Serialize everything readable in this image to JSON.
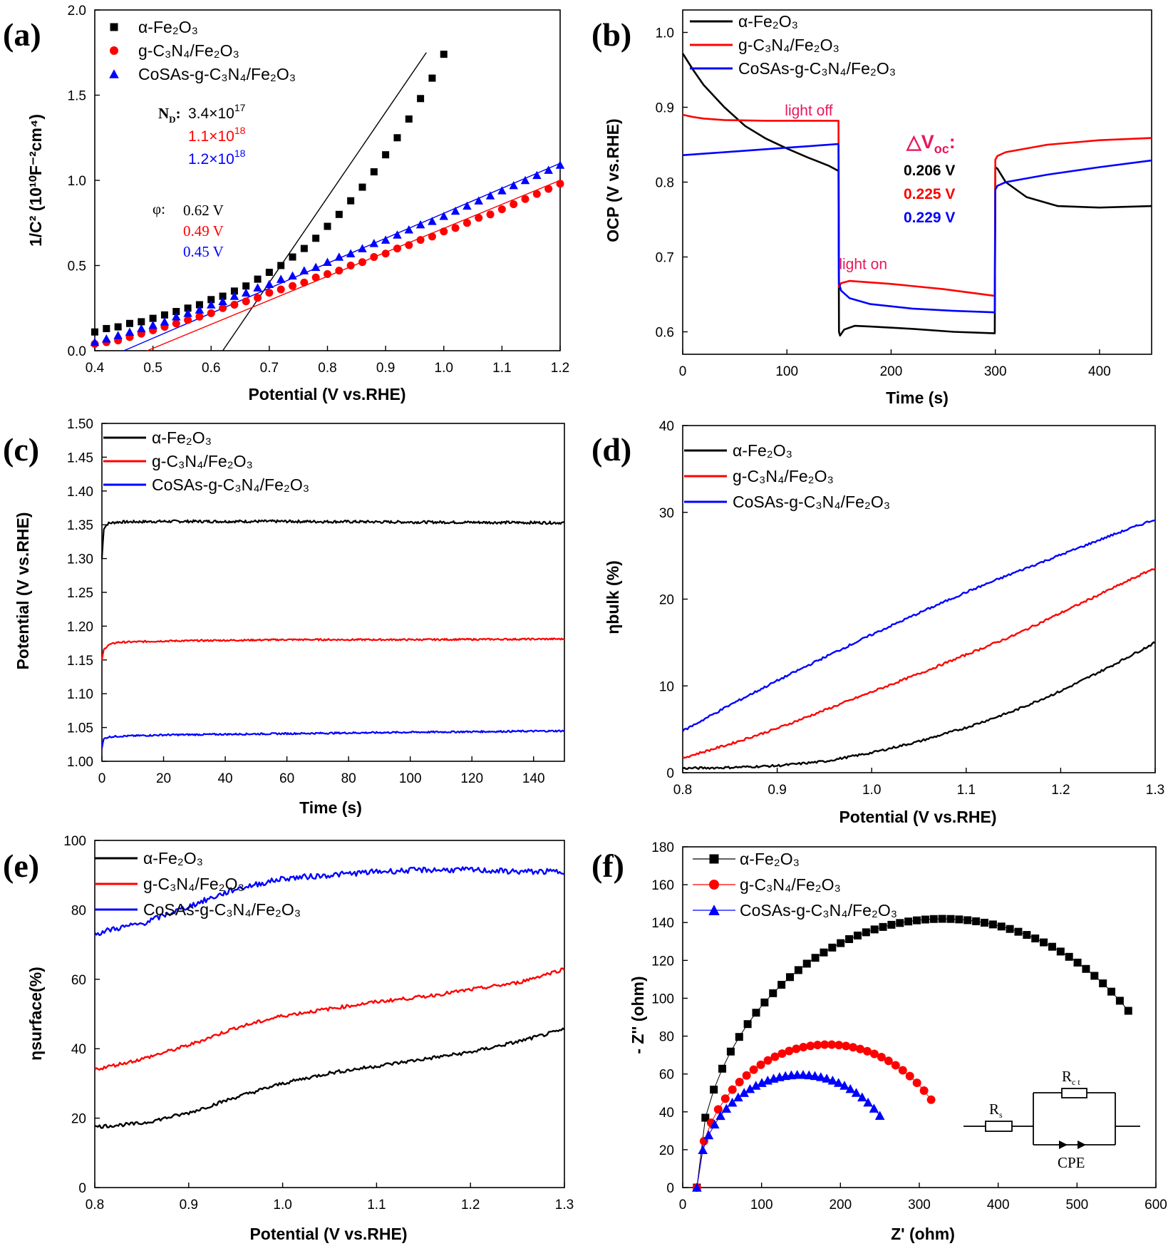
{
  "colors": {
    "black": "#000000",
    "red": "#ff0000",
    "blue": "#0000ff",
    "pink": "#e8185a"
  },
  "chart_data": [
    {
      "id": "a",
      "letter": "(a)",
      "type": "scatter",
      "xlabel": "Potential (V vs.RHE)",
      "ylabel": "1/C² (10¹⁰F⁻²cm⁴)",
      "xlim": [
        0.4,
        1.2
      ],
      "ylim": [
        0,
        2.0
      ],
      "xticks": [
        0.4,
        0.5,
        0.6,
        0.7,
        0.8,
        0.9,
        1.0,
        1.1,
        1.2
      ],
      "yticks": [
        0.0,
        0.5,
        1.0,
        1.5,
        2.0
      ],
      "tick_decimals_x": 1,
      "tick_decimals_y": 1,
      "legend_position": "top-left",
      "series": [
        {
          "name": "α-Fe₂O₃",
          "color": "#000000",
          "marker": "square",
          "x": [
            0.4,
            0.42,
            0.44,
            0.46,
            0.48,
            0.5,
            0.52,
            0.54,
            0.56,
            0.58,
            0.6,
            0.62,
            0.64,
            0.66,
            0.68,
            0.7,
            0.72,
            0.74,
            0.76,
            0.78,
            0.8,
            0.82,
            0.84,
            0.86,
            0.88,
            0.9,
            0.92,
            0.94,
            0.96,
            0.98,
            1.0
          ],
          "y": [
            0.11,
            0.13,
            0.14,
            0.16,
            0.17,
            0.19,
            0.21,
            0.23,
            0.25,
            0.27,
            0.3,
            0.32,
            0.35,
            0.38,
            0.42,
            0.46,
            0.5,
            0.55,
            0.6,
            0.66,
            0.73,
            0.8,
            0.88,
            0.96,
            1.05,
            1.15,
            1.25,
            1.36,
            1.48,
            1.6,
            1.74
          ]
        },
        {
          "name": "g-C₃N₄/Fe₂O₃",
          "color": "#ff0000",
          "marker": "circle",
          "x": [
            0.4,
            0.42,
            0.44,
            0.46,
            0.48,
            0.5,
            0.52,
            0.54,
            0.56,
            0.58,
            0.6,
            0.62,
            0.64,
            0.66,
            0.68,
            0.7,
            0.72,
            0.74,
            0.76,
            0.78,
            0.8,
            0.82,
            0.84,
            0.86,
            0.88,
            0.9,
            0.92,
            0.94,
            0.96,
            0.98,
            1.0,
            1.02,
            1.04,
            1.06,
            1.08,
            1.1,
            1.12,
            1.14,
            1.16,
            1.18,
            1.2
          ],
          "y": [
            0.04,
            0.05,
            0.06,
            0.08,
            0.1,
            0.12,
            0.14,
            0.16,
            0.18,
            0.2,
            0.22,
            0.25,
            0.27,
            0.29,
            0.31,
            0.34,
            0.36,
            0.38,
            0.4,
            0.43,
            0.45,
            0.47,
            0.5,
            0.52,
            0.55,
            0.57,
            0.6,
            0.62,
            0.65,
            0.67,
            0.7,
            0.72,
            0.75,
            0.78,
            0.8,
            0.83,
            0.86,
            0.89,
            0.92,
            0.95,
            0.98
          ]
        },
        {
          "name": "CoSAs-g-C₃N₄/Fe₂O₃",
          "color": "#0000ff",
          "marker": "triangle",
          "x": [
            0.4,
            0.42,
            0.44,
            0.46,
            0.48,
            0.5,
            0.52,
            0.54,
            0.56,
            0.58,
            0.6,
            0.62,
            0.64,
            0.66,
            0.68,
            0.7,
            0.72,
            0.74,
            0.76,
            0.78,
            0.8,
            0.82,
            0.84,
            0.86,
            0.88,
            0.9,
            0.92,
            0.94,
            0.96,
            0.98,
            1.0,
            1.02,
            1.04,
            1.06,
            1.08,
            1.1,
            1.12,
            1.14,
            1.16,
            1.18,
            1.2
          ],
          "y": [
            0.05,
            0.07,
            0.09,
            0.11,
            0.13,
            0.15,
            0.17,
            0.2,
            0.22,
            0.24,
            0.27,
            0.29,
            0.32,
            0.34,
            0.37,
            0.39,
            0.42,
            0.44,
            0.47,
            0.49,
            0.52,
            0.55,
            0.57,
            0.6,
            0.63,
            0.65,
            0.68,
            0.71,
            0.74,
            0.76,
            0.79,
            0.82,
            0.85,
            0.88,
            0.91,
            0.94,
            0.97,
            1.0,
            1.03,
            1.06,
            1.09
          ]
        }
      ],
      "fit_lines": [
        {
          "color": "#000000",
          "x": [
            0.62,
            0.97
          ],
          "y": [
            0.0,
            1.75
          ]
        },
        {
          "color": "#ff0000",
          "x": [
            0.49,
            1.2
          ],
          "y": [
            0.0,
            1.0
          ]
        },
        {
          "color": "#0000ff",
          "x": [
            0.45,
            1.2
          ],
          "y": [
            0.0,
            1.1
          ]
        }
      ]
    },
    {
      "id": "b",
      "letter": "(b)",
      "type": "line",
      "xlabel": "Time (s)",
      "ylabel": "OCP (V vs.RHE)",
      "xlim": [
        0,
        450
      ],
      "ylim": [
        0.57,
        1.03
      ],
      "xticks": [
        0,
        100,
        200,
        300,
        400
      ],
      "yticks": [
        0.6,
        0.7,
        0.8,
        0.9,
        1.0
      ],
      "tick_decimals_x": 0,
      "tick_decimals_y": 1,
      "legend_position": "top-left",
      "series": [
        {
          "name": "α-Fe₂O₃",
          "color": "#000000",
          "x": [
            0,
            10,
            20,
            40,
            60,
            80,
            100,
            120,
            140,
            149.5,
            150,
            151,
            155,
            165,
            180,
            220,
            260,
            299.5,
            300,
            302,
            310,
            330,
            360,
            400,
            450
          ],
          "y": [
            0.972,
            0.95,
            0.93,
            0.9,
            0.875,
            0.858,
            0.845,
            0.833,
            0.822,
            0.815,
            0.6,
            0.595,
            0.603,
            0.608,
            0.607,
            0.604,
            0.6,
            0.598,
            0.82,
            0.818,
            0.8,
            0.78,
            0.768,
            0.766,
            0.768
          ]
        },
        {
          "name": "g-C₃N₄/Fe₂O₃",
          "color": "#ff0000",
          "x": [
            0,
            10,
            20,
            40,
            80,
            120,
            149.5,
            150,
            152,
            160,
            200,
            250,
            299.5,
            300,
            302,
            310,
            350,
            400,
            450
          ],
          "y": [
            0.89,
            0.887,
            0.885,
            0.883,
            0.882,
            0.882,
            0.882,
            0.66,
            0.665,
            0.668,
            0.664,
            0.657,
            0.648,
            0.83,
            0.835,
            0.84,
            0.85,
            0.856,
            0.859
          ]
        },
        {
          "name": "CoSAs-g-C₃N₄/Fe₂O₃",
          "color": "#0000ff",
          "x": [
            0,
            30,
            60,
            100,
            130,
            149.5,
            150,
            152,
            160,
            180,
            220,
            260,
            299.5,
            300,
            302,
            310,
            350,
            400,
            450
          ],
          "y": [
            0.836,
            0.839,
            0.842,
            0.846,
            0.849,
            0.851,
            0.665,
            0.655,
            0.645,
            0.637,
            0.631,
            0.628,
            0.626,
            0.79,
            0.795,
            0.8,
            0.81,
            0.82,
            0.829
          ]
        }
      ],
      "annotations": [
        {
          "text": "light off",
          "color": "#e8185a",
          "x": 98,
          "y": 0.889
        },
        {
          "text": "light on",
          "color": "#e8185a",
          "x": 150,
          "y": 0.684
        }
      ],
      "delta_voc": {
        "prefix": "△V",
        "sub": "oc",
        "suffix": ":",
        "values": [
          {
            "text": "0.206 V",
            "color": "#000000"
          },
          {
            "text": "0.225 V",
            "color": "#ff0000"
          },
          {
            "text": "0.229 V",
            "color": "#0000ff"
          }
        ]
      }
    },
    {
      "id": "c",
      "letter": "(c)",
      "type": "line",
      "xlabel": "Time (s)",
      "ylabel": "Potential (V vs.RHE)",
      "xlim": [
        0,
        150
      ],
      "ylim": [
        1.0,
        1.5
      ],
      "xticks": [
        0,
        20,
        40,
        60,
        80,
        100,
        120,
        140
      ],
      "yticks": [
        1.0,
        1.05,
        1.1,
        1.15,
        1.2,
        1.25,
        1.3,
        1.35,
        1.4,
        1.45,
        1.5
      ],
      "tick_decimals_x": 0,
      "tick_decimals_y": 2,
      "legend_position": "top-left",
      "series": [
        {
          "name": "α-Fe₂O₃",
          "color": "#000000",
          "x": [
            0,
            0.6,
            2,
            5,
            20,
            60,
            100,
            150
          ],
          "y": [
            1.3,
            1.345,
            1.352,
            1.354,
            1.355,
            1.355,
            1.354,
            1.353
          ]
        },
        {
          "name": "g-C₃N₄/Fe₂O₃",
          "color": "#ff0000",
          "x": [
            0,
            0.6,
            2,
            5,
            20,
            60,
            100,
            150
          ],
          "y": [
            1.15,
            1.165,
            1.172,
            1.176,
            1.178,
            1.18,
            1.18,
            1.181
          ]
        },
        {
          "name": "CoSAs-g-C₃N₄/Fe₂O₃",
          "color": "#0000ff",
          "x": [
            0,
            0.6,
            2,
            5,
            20,
            60,
            100,
            150
          ],
          "y": [
            1.02,
            1.033,
            1.036,
            1.037,
            1.039,
            1.041,
            1.043,
            1.045
          ]
        }
      ]
    },
    {
      "id": "d",
      "letter": "(d)",
      "type": "line",
      "xlabel": "Potential (V vs.RHE)",
      "ylabel": "ηbulk (%)",
      "xlim": [
        0.8,
        1.3
      ],
      "ylim": [
        0,
        40
      ],
      "xticks": [
        0.8,
        0.9,
        1.0,
        1.1,
        1.2,
        1.3
      ],
      "yticks": [
        0,
        10,
        20,
        30,
        40
      ],
      "tick_decimals_x": 1,
      "tick_decimals_y": 0,
      "legend_position": "top-left",
      "series": [
        {
          "name": "α-Fe₂O₃",
          "color": "#000000",
          "x": [
            0.8,
            0.85,
            0.9,
            0.95,
            1.0,
            1.05,
            1.1,
            1.15,
            1.2,
            1.25,
            1.3
          ],
          "y": [
            0.5,
            0.6,
            0.8,
            1.3,
            2.3,
            3.6,
            5.2,
            7.1,
            9.4,
            12.1,
            15.0
          ]
        },
        {
          "name": "g-C₃N₄/Fe₂O₃",
          "color": "#ff0000",
          "x": [
            0.8,
            0.85,
            0.9,
            0.95,
            1.0,
            1.05,
            1.1,
            1.15,
            1.2,
            1.25,
            1.3
          ],
          "y": [
            1.7,
            3.3,
            5.1,
            7.2,
            9.3,
            11.4,
            13.6,
            15.8,
            18.4,
            21.0,
            23.6
          ]
        },
        {
          "name": "CoSAs-g-C₃N₄/Fe₂O₃",
          "color": "#0000ff",
          "x": [
            0.8,
            0.85,
            0.9,
            0.95,
            1.0,
            1.05,
            1.1,
            1.15,
            1.2,
            1.25,
            1.3
          ],
          "y": [
            4.8,
            7.8,
            10.6,
            13.3,
            15.9,
            18.4,
            20.8,
            23.0,
            25.1,
            27.2,
            29.2
          ]
        }
      ]
    },
    {
      "id": "e",
      "letter": "(e)",
      "type": "line",
      "xlabel": "Potential (V vs.RHE)",
      "ylabel": "ηsurface(%)",
      "xlim": [
        0.8,
        1.3
      ],
      "ylim": [
        0,
        100
      ],
      "xticks": [
        0.8,
        0.9,
        1.0,
        1.1,
        1.2,
        1.3
      ],
      "yticks": [
        0,
        20,
        40,
        60,
        80,
        100
      ],
      "tick_decimals_x": 1,
      "tick_decimals_y": 0,
      "legend_position": "top-left",
      "series": [
        {
          "name": "α-Fe₂O₃",
          "color": "#000000",
          "x": [
            0.8,
            0.85,
            0.9,
            0.95,
            1.0,
            1.05,
            1.1,
            1.15,
            1.2,
            1.25,
            1.3
          ],
          "y": [
            17.5,
            18.5,
            21.5,
            26,
            30,
            33,
            35,
            37,
            39,
            42,
            45.5
          ]
        },
        {
          "name": "g-C₃N₄/Fe₂O₃",
          "color": "#ff0000",
          "x": [
            0.8,
            0.85,
            0.9,
            0.95,
            1.0,
            1.05,
            1.1,
            1.15,
            1.2,
            1.25,
            1.3
          ],
          "y": [
            34,
            37,
            41,
            46,
            49.5,
            51.5,
            53.5,
            55,
            57,
            59,
            63
          ]
        },
        {
          "name": "CoSAs-g-C₃N₄/Fe₂O₃",
          "color": "#0000ff",
          "x": [
            0.8,
            0.82,
            0.85,
            0.9,
            0.95,
            1.0,
            1.05,
            1.1,
            1.15,
            1.2,
            1.25,
            1.3
          ],
          "y": [
            73,
            74.5,
            76,
            81,
            86,
            89,
            90,
            91,
            91.5,
            91.5,
            91,
            91
          ]
        }
      ]
    },
    {
      "id": "f",
      "letter": "(f)",
      "type": "scatter",
      "xlabel": "Z' (ohm)",
      "ylabel": "- Z'' (ohm)",
      "xlim": [
        0,
        600
      ],
      "ylim": [
        0,
        180
      ],
      "xticks": [
        0,
        100,
        200,
        300,
        400,
        500,
        600
      ],
      "yticks": [
        0,
        20,
        40,
        60,
        80,
        100,
        120,
        140,
        160,
        180
      ],
      "tick_decimals_x": 0,
      "tick_decimals_y": 0,
      "legend_position": "top-left",
      "series": [
        {
          "name": "α-Fe₂O₃",
          "color": "#000000",
          "marker": "square",
          "arc": {
            "x0": 18,
            "center": 330,
            "radius": 312,
            "x_end": 565,
            "n": 52
          }
        },
        {
          "name": "g-C₃N₄/Fe₂O₃",
          "color": "#ff0000",
          "marker": "circle",
          "arc": {
            "x0": 18,
            "center": 184,
            "radius": 166,
            "x_end": 315,
            "n": 34
          }
        },
        {
          "name": "CoSAs-g-C₃N₄/Fe₂O₃",
          "color": "#0000ff",
          "marker": "triangle",
          "arc": {
            "x0": 18,
            "center": 149,
            "radius": 131,
            "x_end": 250,
            "n": 32
          }
        }
      ],
      "circuit": {
        "rs_main": "R",
        "rs_sub": "s",
        "rct_main": "R",
        "rct_sub": "c t",
        "cpe": "CPE"
      }
    }
  ],
  "annotations_a": {
    "nd_label": "N",
    "nd_sub": "D",
    "nd_colon": ":",
    "nd_values": [
      {
        "mantissa": "3.4×10",
        "exp": "17",
        "color": "#000000"
      },
      {
        "mantissa": "1.1×10",
        "exp": "18",
        "color": "#ff0000"
      },
      {
        "mantissa": "1.2×10",
        "exp": "18",
        "color": "#0000ff"
      }
    ],
    "phi_label": "φ:",
    "phi_values": [
      {
        "text": "0.62 V",
        "color": "#000000"
      },
      {
        "text": "0.49 V",
        "color": "#ff0000"
      },
      {
        "text": "0.45 V",
        "color": "#0000ff"
      }
    ]
  }
}
